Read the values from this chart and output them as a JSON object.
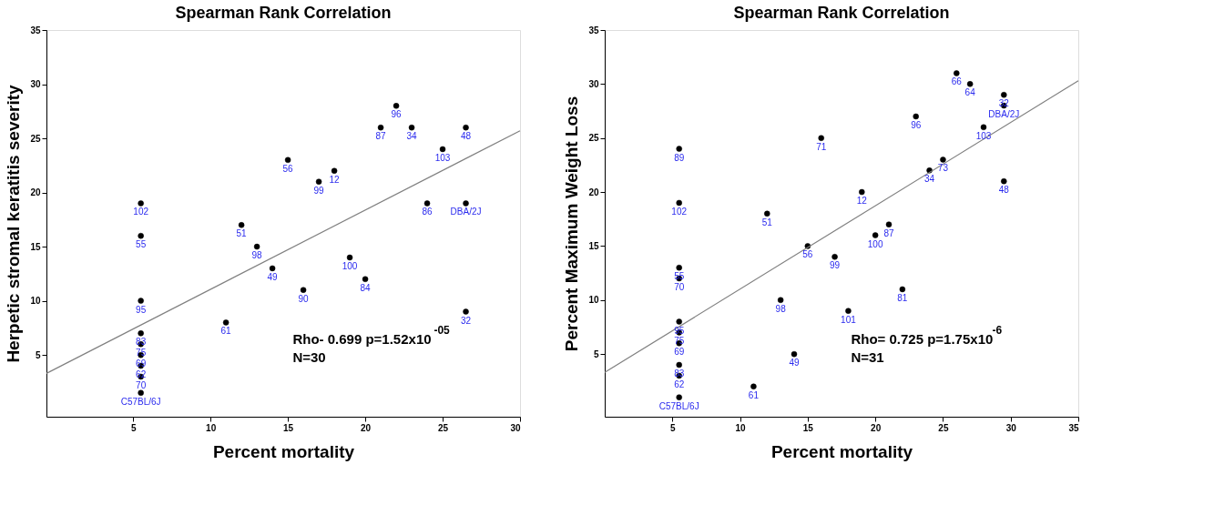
{
  "chart_data": [
    {
      "type": "scatter",
      "title": "Spearman Rank Correlation",
      "xlabel": "Percent mortality",
      "ylabel": "Herpetic stromal keratitis severity",
      "xlim": [
        -0.6,
        30
      ],
      "ylim": [
        -0.7,
        35
      ],
      "xticks": [
        5,
        10,
        15,
        20,
        25,
        30
      ],
      "yticks": [
        5,
        10,
        15,
        20,
        25,
        30,
        35
      ],
      "marker": "circle",
      "annotations": [
        "Rho- 0.699 p=1.52x10$^{-05}$",
        "N=30",
        {
          "text": "102",
          "x": 5.5,
          "y": 19
        },
        {
          "text": "55",
          "x": 5.5,
          "y": 16
        },
        {
          "text": "95",
          "x": 5.5,
          "y": 10
        },
        {
          "text": "83",
          "x": 5.5,
          "y": 7
        },
        {
          "text": "75",
          "x": 5.5,
          "y": 6
        },
        {
          "text": "69",
          "x": 5.5,
          "y": 5
        },
        {
          "text": "62",
          "x": 5.5,
          "y": 4
        },
        {
          "text": "70",
          "x": 5.5,
          "y": 3
        },
        {
          "text": "C57BL/6J",
          "x": 5.5,
          "y": 1.5
        },
        {
          "text": "96",
          "x": 22,
          "y": 28
        },
        {
          "text": "87",
          "x": 21,
          "y": 26
        },
        {
          "text": "34",
          "x": 23,
          "y": 26
        },
        {
          "text": "48",
          "x": 26.5,
          "y": 26
        },
        {
          "text": "103",
          "x": 25,
          "y": 24
        },
        {
          "text": "56",
          "x": 15,
          "y": 23
        },
        {
          "text": "12",
          "x": 18,
          "y": 22
        },
        {
          "text": "99",
          "x": 17,
          "y": 21
        },
        {
          "text": "86",
          "x": 24,
          "y": 19
        },
        {
          "text": "DBA/2J",
          "x": 26.5,
          "y": 19
        },
        {
          "text": "51",
          "x": 12,
          "y": 17
        },
        {
          "text": "98",
          "x": 13,
          "y": 15
        },
        {
          "text": "49",
          "x": 14,
          "y": 13
        },
        {
          "text": "100",
          "x": 19,
          "y": 14
        },
        {
          "text": "84",
          "x": 20,
          "y": 12
        },
        {
          "text": "90",
          "x": 16,
          "y": 11
        },
        {
          "text": "61",
          "x": 11,
          "y": 8
        },
        {
          "text": "32",
          "x": 26.5,
          "y": 9
        }
      ],
      "series": [
        {
          "color": "#000000",
          "x": [
            5.5,
            5.5,
            5.5,
            5.5,
            5.5,
            5.5,
            5.5,
            5.5,
            5.5,
            22,
            21,
            23,
            26.5,
            25,
            15,
            18,
            17,
            24,
            26.5,
            12,
            13,
            14,
            19,
            20,
            16,
            11,
            26.5
          ],
          "values": [
            19,
            16,
            10,
            7,
            6,
            5,
            4,
            3,
            1.5,
            28,
            26,
            26,
            26,
            24,
            23,
            22,
            21,
            19,
            19,
            17,
            15,
            13,
            14,
            12,
            11,
            8,
            9
          ]
        },
        {
          "type": "line",
          "marker": "none",
          "color": "#808080",
          "x": [
            -0.6,
            30
          ],
          "values": [
            3.3,
            25.7
          ]
        }
      ]
    },
    {
      "type": "scatter",
      "title": "Spearman Rank Correlation",
      "xlabel": "Percent mortality",
      "ylabel": "Percent Maximum Weight Loss",
      "xlim": [
        0,
        35
      ],
      "ylim": [
        -0.8,
        35
      ],
      "xticks": [
        5,
        10,
        15,
        20,
        25,
        30,
        35
      ],
      "yticks": [
        5,
        10,
        15,
        20,
        25,
        30,
        35
      ],
      "marker": "circle",
      "annotations": [
        "Rho= 0.725 p=1.75x10$^{-6}$",
        "N=31",
        {
          "text": "89",
          "x": 5.5,
          "y": 24
        },
        {
          "text": "102",
          "x": 5.5,
          "y": 19
        },
        {
          "text": "55",
          "x": 5.5,
          "y": 13
        },
        {
          "text": "70",
          "x": 5.5,
          "y": 12
        },
        {
          "text": "95",
          "x": 5.5,
          "y": 8
        },
        {
          "text": "75",
          "x": 5.5,
          "y": 7
        },
        {
          "text": "69",
          "x": 5.5,
          "y": 6
        },
        {
          "text": "83",
          "x": 5.5,
          "y": 4
        },
        {
          "text": "62",
          "x": 5.5,
          "y": 3
        },
        {
          "text": "C57BL/6J",
          "x": 5.5,
          "y": 1
        },
        {
          "text": "66",
          "x": 26,
          "y": 31
        },
        {
          "text": "64",
          "x": 27,
          "y": 30
        },
        {
          "text": "32",
          "x": 29.5,
          "y": 29
        },
        {
          "text": "DBA/2J",
          "x": 29.5,
          "y": 28
        },
        {
          "text": "96",
          "x": 23,
          "y": 27
        },
        {
          "text": "71",
          "x": 16,
          "y": 25
        },
        {
          "text": "103",
          "x": 28,
          "y": 26
        },
        {
          "text": "73",
          "x": 25,
          "y": 23
        },
        {
          "text": "34",
          "x": 24,
          "y": 22
        },
        {
          "text": "48",
          "x": 29.5,
          "y": 21
        },
        {
          "text": "12",
          "x": 19,
          "y": 20
        },
        {
          "text": "51",
          "x": 12,
          "y": 18
        },
        {
          "text": "87",
          "x": 21,
          "y": 17
        },
        {
          "text": "100",
          "x": 20,
          "y": 16
        },
        {
          "text": "56",
          "x": 15,
          "y": 15
        },
        {
          "text": "99",
          "x": 17,
          "y": 14
        },
        {
          "text": "81",
          "x": 22,
          "y": 11
        },
        {
          "text": "98",
          "x": 13,
          "y": 10
        },
        {
          "text": "101",
          "x": 18,
          "y": 9
        },
        {
          "text": "49",
          "x": 14,
          "y": 5
        },
        {
          "text": "61",
          "x": 11,
          "y": 2
        }
      ],
      "series": [
        {
          "color": "#000000",
          "x": [
            5.5,
            5.5,
            5.5,
            5.5,
            5.5,
            5.5,
            5.5,
            5.5,
            5.5,
            5.5,
            26,
            27,
            29.5,
            29.5,
            23,
            16,
            28,
            25,
            24,
            29.5,
            19,
            12,
            21,
            20,
            15,
            17,
            22,
            13,
            18,
            14,
            11
          ],
          "values": [
            24,
            19,
            13,
            12,
            8,
            7,
            6,
            4,
            3,
            1,
            31,
            30,
            29,
            28,
            27,
            25,
            26,
            23,
            22,
            21,
            20,
            18,
            17,
            16,
            15,
            14,
            11,
            10,
            9,
            5,
            2
          ]
        },
        {
          "type": "line",
          "marker": "none",
          "color": "#808080",
          "x": [
            0,
            35
          ],
          "values": [
            3.3,
            30.3
          ]
        }
      ]
    }
  ]
}
